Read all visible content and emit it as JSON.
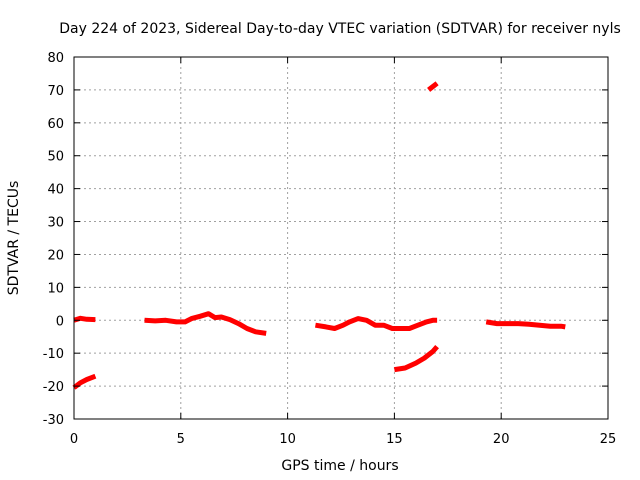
{
  "chart_data": {
    "type": "line",
    "title": "Day 224 of 2023, Sidereal Day-to-day VTEC variation (SDTVAR) for receiver nyls",
    "xlabel": "GPS time / hours",
    "ylabel": "SDTVAR / TECUs",
    "xlim": [
      0,
      25
    ],
    "ylim": [
      -30,
      80
    ],
    "xticks": [
      "0",
      "5",
      "10",
      "15",
      "20",
      "25"
    ],
    "yticks": [
      "-30",
      "-20",
      "-10",
      "0",
      "10",
      "20",
      "30",
      "40",
      "50",
      "60",
      "70",
      "80"
    ],
    "grid": true,
    "color": "#ff0000",
    "segments": [
      {
        "x": [
          0.0,
          0.3,
          0.6,
          1.0
        ],
        "y": [
          0.0,
          0.6,
          0.3,
          0.2
        ]
      },
      {
        "x": [
          0.0,
          0.3,
          0.6,
          1.0
        ],
        "y": [
          -20.5,
          -19.0,
          -18.0,
          -17.0
        ]
      },
      {
        "x": [
          3.3,
          3.8,
          4.3,
          4.8,
          5.2,
          5.5,
          5.9,
          6.3,
          6.6,
          6.9,
          7.3,
          7.7,
          8.1,
          8.5,
          9.0
        ],
        "y": [
          0.0,
          -0.2,
          0.0,
          -0.5,
          -0.5,
          0.5,
          1.2,
          2.0,
          0.8,
          1.0,
          0.2,
          -1.0,
          -2.5,
          -3.5,
          -4.0
        ]
      },
      {
        "x": [
          11.3,
          11.8,
          12.2,
          12.6,
          12.9,
          13.3,
          13.7,
          14.1,
          14.5,
          14.9,
          15.3,
          15.7,
          16.1,
          16.5,
          16.8,
          17.0
        ],
        "y": [
          -1.5,
          -2.0,
          -2.5,
          -1.5,
          -0.5,
          0.5,
          0.0,
          -1.5,
          -1.5,
          -2.5,
          -2.5,
          -2.5,
          -1.5,
          -0.5,
          0.0,
          0.0
        ]
      },
      {
        "x": [
          15.0,
          15.5,
          16.0,
          16.4,
          16.8,
          17.0
        ],
        "y": [
          -15.0,
          -14.5,
          -13.0,
          -11.5,
          -9.5,
          -8.0
        ]
      },
      {
        "x": [
          16.6,
          16.8,
          17.0
        ],
        "y": [
          70.0,
          71.0,
          72.0
        ]
      },
      {
        "x": [
          19.3,
          19.8,
          20.3,
          20.8,
          21.3,
          21.8,
          22.3,
          22.8,
          23.0
        ],
        "y": [
          -0.5,
          -1.0,
          -1.0,
          -1.0,
          -1.2,
          -1.5,
          -1.8,
          -1.8,
          -2.0
        ]
      }
    ]
  }
}
